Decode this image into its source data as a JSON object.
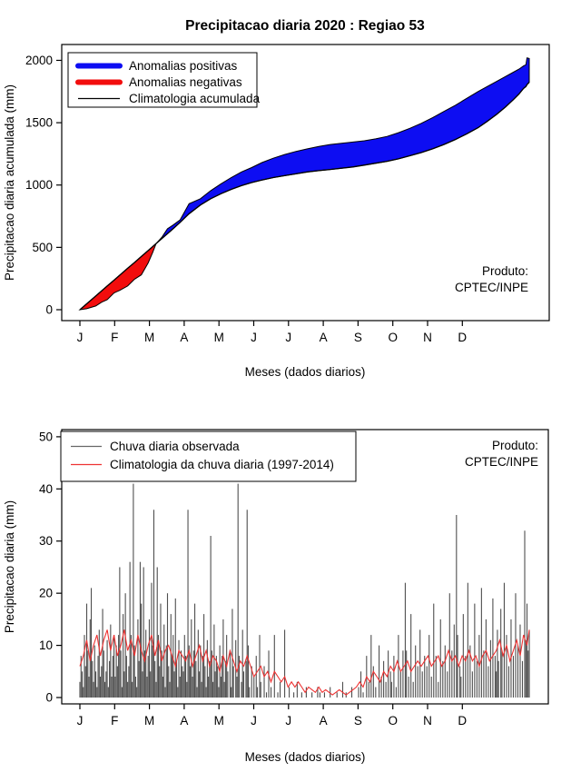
{
  "top_chart": {
    "title": "Precipitacao diaria 2020 : Regiao 53",
    "ylabel": "Precipitacao diaria acumulada (mm)",
    "xlabel": "Meses (dados diarios)",
    "produto_line1": "Produto:",
    "produto_line2": "CPTEC/INPE",
    "legend": [
      {
        "label": "Anomalias positivas",
        "color": "#0d0df2",
        "lw": 6
      },
      {
        "label": "Anomalias negativas",
        "color": "#f20d0d",
        "lw": 6
      },
      {
        "label": "Climatologia acumulada",
        "color": "#000000",
        "lw": 1.3
      }
    ],
    "y_ticks": [
      0,
      500,
      1000,
      1500,
      2000
    ],
    "month_labels": [
      "J",
      "F",
      "M",
      "A",
      "M",
      "J",
      "J",
      "A",
      "S",
      "O",
      "N",
      "D"
    ]
  },
  "bottom_chart": {
    "ylabel": "Precipitacao diaria (mm)",
    "xlabel": "Meses (dados diarios)",
    "produto_line1": "Produto:",
    "produto_line2": "CPTEC/INPE",
    "legend": [
      {
        "label": "Chuva diaria observada",
        "color": "#666666",
        "lw": 1.3
      },
      {
        "label": "Climatologia da chuva diaria (1997-2014)",
        "color": "#ee3333",
        "lw": 1.3
      }
    ],
    "y_ticks": [
      0,
      10,
      20,
      30,
      40,
      50
    ],
    "month_labels": [
      "J",
      "F",
      "M",
      "A",
      "M",
      "J",
      "J",
      "A",
      "S",
      "O",
      "N",
      "D"
    ]
  },
  "chart_data": [
    {
      "type": "area",
      "title": "Precipitacao diaria 2020 : Regiao 53",
      "xlabel": "Meses (dados diarios)",
      "ylabel": "Precipitacao diaria acumulada (mm)",
      "ylim": [
        0,
        2000
      ],
      "x_unit": "day_index_from_jan1",
      "crossing_day": 67,
      "colors": {
        "positive_anomaly": "#0d0df2",
        "negative_anomaly": "#f20d0d",
        "climatology": "#000000"
      },
      "days": [
        0,
        6,
        14,
        19,
        24,
        30,
        35,
        42,
        48,
        54,
        60,
        64,
        67,
        72,
        77,
        82,
        88,
        96,
        106,
        115,
        124,
        133,
        142,
        151,
        160,
        170,
        180,
        190,
        200,
        210,
        220,
        230,
        240,
        250,
        260,
        270,
        280,
        290,
        300,
        310,
        320,
        330,
        340,
        350,
        358,
        366,
        374,
        381,
        386,
        390,
        392,
        393,
        395
      ],
      "climatology_mm": [
        0,
        47,
        110,
        150,
        190,
        237,
        277,
        332,
        379,
        427,
        474,
        506,
        531,
        570,
        610,
        650,
        700,
        770,
        840,
        890,
        930,
        965,
        995,
        1020,
        1040,
        1060,
        1075,
        1090,
        1105,
        1115,
        1125,
        1135,
        1145,
        1160,
        1175,
        1190,
        1210,
        1235,
        1260,
        1290,
        1325,
        1365,
        1410,
        1460,
        1510,
        1565,
        1625,
        1685,
        1730,
        1775,
        1790,
        1805,
        1825
      ],
      "observed_mm": [
        0,
        8,
        30,
        60,
        80,
        135,
        155,
        190,
        245,
        280,
        375,
        460,
        531,
        580,
        650,
        680,
        720,
        850,
        890,
        955,
        1010,
        1060,
        1105,
        1140,
        1180,
        1215,
        1245,
        1270,
        1290,
        1310,
        1325,
        1335,
        1345,
        1355,
        1370,
        1390,
        1420,
        1455,
        1495,
        1540,
        1590,
        1640,
        1695,
        1750,
        1790,
        1830,
        1870,
        1905,
        1930,
        1955,
        1965,
        2020,
        2015
      ]
    },
    {
      "type": "bar",
      "xlabel": "Meses (dados diarios)",
      "ylabel": "Precipitacao diaria (mm)",
      "ylim": [
        0,
        50
      ],
      "x_unit": "day_index_from_jan1",
      "colors": {
        "bars": "#4f4f4f",
        "climatology_line": "#ee3333"
      },
      "bars": [
        [
          0,
          3
        ],
        [
          1,
          8
        ],
        [
          2,
          5
        ],
        [
          3,
          2
        ],
        [
          4,
          12
        ],
        [
          5,
          6
        ],
        [
          6,
          18
        ],
        [
          7,
          9
        ],
        [
          8,
          4
        ],
        [
          9,
          15
        ],
        [
          10,
          21
        ],
        [
          11,
          7
        ],
        [
          12,
          3
        ],
        [
          13,
          10
        ],
        [
          14,
          5
        ],
        [
          15,
          2
        ],
        [
          16,
          8
        ],
        [
          17,
          13
        ],
        [
          18,
          4
        ],
        [
          19,
          6
        ],
        [
          20,
          17
        ],
        [
          21,
          9
        ],
        [
          22,
          3
        ],
        [
          23,
          5
        ],
        [
          24,
          11
        ],
        [
          25,
          2
        ],
        [
          26,
          7
        ],
        [
          27,
          14
        ],
        [
          28,
          4
        ],
        [
          29,
          8
        ],
        [
          30,
          12
        ],
        [
          31,
          4
        ],
        [
          32,
          10
        ],
        [
          33,
          6
        ],
        [
          34,
          12
        ],
        [
          35,
          25
        ],
        [
          36,
          9
        ],
        [
          37,
          2
        ],
        [
          38,
          16
        ],
        [
          39,
          5
        ],
        [
          40,
          20
        ],
        [
          41,
          8
        ],
        [
          42,
          3
        ],
        [
          43,
          6
        ],
        [
          44,
          26
        ],
        [
          45,
          12
        ],
        [
          46,
          3
        ],
        [
          47,
          41
        ],
        [
          48,
          10
        ],
        [
          49,
          4
        ],
        [
          50,
          2
        ],
        [
          51,
          15
        ],
        [
          52,
          7
        ],
        [
          53,
          26
        ],
        [
          54,
          18
        ],
        [
          55,
          5
        ],
        [
          56,
          25
        ],
        [
          57,
          9
        ],
        [
          58,
          13
        ],
        [
          59,
          4
        ],
        [
          60,
          8
        ],
        [
          61,
          15
        ],
        [
          62,
          5
        ],
        [
          63,
          22
        ],
        [
          64,
          10
        ],
        [
          65,
          36
        ],
        [
          66,
          7
        ],
        [
          67,
          3
        ],
        [
          68,
          25
        ],
        [
          69,
          12
        ],
        [
          70,
          6
        ],
        [
          71,
          18
        ],
        [
          72,
          9
        ],
        [
          73,
          4
        ],
        [
          74,
          14
        ],
        [
          75,
          2
        ],
        [
          76,
          10
        ],
        [
          77,
          20
        ],
        [
          78,
          6
        ],
        [
          79,
          3
        ],
        [
          80,
          16
        ],
        [
          81,
          8
        ],
        [
          82,
          12
        ],
        [
          83,
          5
        ],
        [
          84,
          19
        ],
        [
          85,
          7
        ],
        [
          86,
          2
        ],
        [
          87,
          11
        ],
        [
          88,
          4
        ],
        [
          89,
          9
        ],
        [
          90,
          6
        ],
        [
          91,
          5
        ],
        [
          92,
          12
        ],
        [
          93,
          8
        ],
        [
          94,
          3
        ],
        [
          95,
          36
        ],
        [
          96,
          10
        ],
        [
          97,
          6
        ],
        [
          98,
          15
        ],
        [
          99,
          4
        ],
        [
          100,
          9
        ],
        [
          101,
          18
        ],
        [
          102,
          7
        ],
        [
          103,
          2
        ],
        [
          104,
          13
        ],
        [
          105,
          5
        ],
        [
          106,
          10
        ],
        [
          107,
          3
        ],
        [
          108,
          8
        ],
        [
          109,
          16
        ],
        [
          110,
          6
        ],
        [
          111,
          2
        ],
        [
          112,
          11
        ],
        [
          113,
          4
        ],
        [
          114,
          7
        ],
        [
          115,
          31
        ],
        [
          116,
          9
        ],
        [
          117,
          3
        ],
        [
          118,
          14
        ],
        [
          119,
          5
        ],
        [
          120,
          8
        ],
        [
          121,
          6
        ],
        [
          122,
          2
        ],
        [
          123,
          10
        ],
        [
          124,
          4
        ],
        [
          125,
          8
        ],
        [
          126,
          15
        ],
        [
          127,
          3
        ],
        [
          128,
          7
        ],
        [
          129,
          12
        ],
        [
          130,
          5
        ],
        [
          132,
          9
        ],
        [
          133,
          2
        ],
        [
          134,
          17
        ],
        [
          135,
          6
        ],
        [
          137,
          11
        ],
        [
          138,
          4
        ],
        [
          139,
          41
        ],
        [
          140,
          8
        ],
        [
          142,
          3
        ],
        [
          143,
          13
        ],
        [
          144,
          5
        ],
        [
          146,
          7
        ],
        [
          147,
          36
        ],
        [
          148,
          10
        ],
        [
          149,
          2
        ],
        [
          151,
          6
        ],
        [
          153,
          4
        ],
        [
          155,
          8
        ],
        [
          156,
          2
        ],
        [
          158,
          12
        ],
        [
          159,
          3
        ],
        [
          162,
          6
        ],
        [
          164,
          1
        ],
        [
          166,
          9
        ],
        [
          168,
          2
        ],
        [
          171,
          12
        ],
        [
          174,
          1
        ],
        [
          176,
          3
        ],
        [
          180,
          13
        ],
        [
          184,
          2
        ],
        [
          188,
          1
        ],
        [
          191,
          3
        ],
        [
          195,
          1
        ],
        [
          199,
          2
        ],
        [
          204,
          1
        ],
        [
          209,
          2
        ],
        [
          211,
          1
        ],
        [
          215,
          1
        ],
        [
          220,
          2
        ],
        [
          226,
          1
        ],
        [
          231,
          3
        ],
        [
          234,
          1
        ],
        [
          239,
          2
        ],
        [
          245,
          2
        ],
        [
          247,
          5
        ],
        [
          249,
          1
        ],
        [
          252,
          8
        ],
        [
          254,
          3
        ],
        [
          256,
          12
        ],
        [
          258,
          6
        ],
        [
          260,
          2
        ],
        [
          263,
          10
        ],
        [
          265,
          4
        ],
        [
          267,
          7
        ],
        [
          269,
          3
        ],
        [
          271,
          9
        ],
        [
          273,
          5
        ],
        [
          274,
          3
        ],
        [
          276,
          8
        ],
        [
          278,
          2
        ],
        [
          280,
          12
        ],
        [
          282,
          5
        ],
        [
          284,
          9
        ],
        [
          286,
          22
        ],
        [
          287,
          9
        ],
        [
          289,
          4
        ],
        [
          291,
          16
        ],
        [
          293,
          3
        ],
        [
          295,
          10
        ],
        [
          297,
          6
        ],
        [
          299,
          13
        ],
        [
          301,
          5
        ],
        [
          303,
          8
        ],
        [
          305,
          6
        ],
        [
          307,
          12
        ],
        [
          309,
          4
        ],
        [
          311,
          18
        ],
        [
          313,
          8
        ],
        [
          315,
          3
        ],
        [
          317,
          15
        ],
        [
          319,
          7
        ],
        [
          321,
          10
        ],
        [
          323,
          5
        ],
        [
          325,
          20
        ],
        [
          327,
          9
        ],
        [
          329,
          14
        ],
        [
          331,
          35
        ],
        [
          332,
          12
        ],
        [
          334,
          6
        ],
        [
          335,
          4
        ],
        [
          337,
          16
        ],
        [
          339,
          8
        ],
        [
          341,
          22
        ],
        [
          343,
          10
        ],
        [
          345,
          5
        ],
        [
          347,
          18
        ],
        [
          349,
          7
        ],
        [
          351,
          12
        ],
        [
          353,
          21
        ],
        [
          355,
          9
        ],
        [
          357,
          15
        ],
        [
          359,
          6
        ],
        [
          361,
          11
        ],
        [
          363,
          19
        ],
        [
          365,
          8
        ],
        [
          366,
          5
        ],
        [
          367,
          13
        ],
        [
          368,
          7
        ],
        [
          370,
          17
        ],
        [
          371,
          9
        ],
        [
          373,
          22
        ],
        [
          375,
          12
        ],
        [
          377,
          6
        ],
        [
          379,
          15
        ],
        [
          381,
          8
        ],
        [
          383,
          20
        ],
        [
          385,
          10
        ],
        [
          387,
          14
        ],
        [
          389,
          7
        ],
        [
          391,
          32
        ],
        [
          392,
          11
        ],
        [
          393,
          18
        ],
        [
          394,
          9
        ],
        [
          395,
          13
        ]
      ],
      "climatology_step_days": 3,
      "climatology_values": [
        6,
        8,
        11,
        7,
        10,
        12,
        8,
        11,
        13,
        9,
        12,
        8,
        10,
        13,
        9,
        11,
        8,
        12,
        9,
        7,
        10,
        12,
        8,
        11,
        7,
        9,
        10,
        8,
        6,
        9,
        8,
        7,
        9,
        6,
        8,
        10,
        7,
        9,
        6,
        8,
        7,
        5,
        8,
        6,
        9,
        7,
        5,
        7,
        6,
        8,
        6,
        4,
        5,
        6,
        4,
        5,
        3,
        5,
        4,
        3,
        4,
        2,
        3,
        2,
        3,
        2,
        1,
        2,
        1.5,
        1,
        2,
        1,
        1.5,
        1,
        0.5,
        1,
        1.5,
        1,
        0.5,
        1,
        1.5,
        2,
        3,
        2,
        4,
        3,
        5,
        4,
        3,
        5,
        4,
        6,
        5,
        7,
        5,
        6,
        7,
        5,
        6,
        7,
        6,
        7,
        8,
        6,
        7,
        8,
        6,
        7,
        9,
        7,
        8,
        6,
        8,
        7,
        9,
        7,
        8,
        6,
        8,
        9,
        7,
        8,
        9,
        11,
        8,
        10,
        7,
        9,
        11,
        8,
        12,
        10,
        13
      ]
    }
  ]
}
